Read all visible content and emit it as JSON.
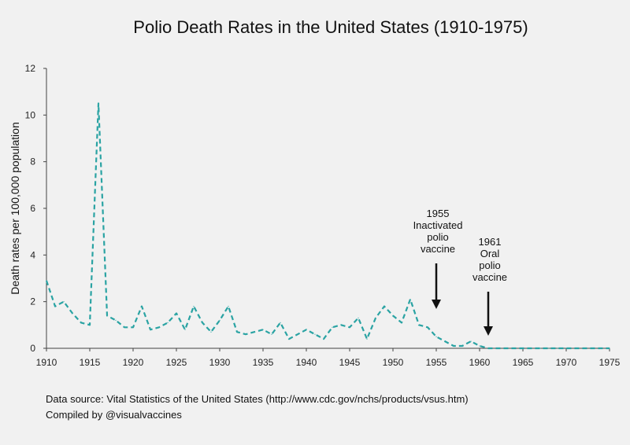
{
  "chart_data": {
    "type": "line",
    "title": "Polio Death Rates in the United States (1910-1975)",
    "xlabel": "",
    "ylabel": "Death rates per 100,000 population",
    "xlim": [
      1910,
      1975
    ],
    "ylim": [
      0,
      12
    ],
    "xticks": [
      1910,
      1915,
      1920,
      1925,
      1930,
      1935,
      1940,
      1945,
      1950,
      1955,
      1960,
      1965,
      1970,
      1975
    ],
    "yticks": [
      0,
      2,
      4,
      6,
      8,
      10,
      12
    ],
    "grid": false,
    "line_color": "#2aa3a3",
    "line_style": "dashed",
    "series": [
      {
        "x": [
          1910,
          1911,
          1912,
          1913,
          1914,
          1915,
          1916,
          1917,
          1918,
          1919,
          1920,
          1921,
          1922,
          1923,
          1924,
          1925,
          1926,
          1927,
          1928,
          1929,
          1930,
          1931,
          1932,
          1933,
          1934,
          1935,
          1936,
          1937,
          1938,
          1939,
          1940,
          1941,
          1942,
          1943,
          1944,
          1945,
          1946,
          1947,
          1948,
          1949,
          1950,
          1951,
          1952,
          1953,
          1954,
          1955,
          1956,
          1957,
          1958,
          1959,
          1960,
          1961,
          1962,
          1963,
          1964,
          1965,
          1966,
          1967,
          1968,
          1969,
          1970,
          1971,
          1972,
          1973,
          1974,
          1975
        ],
        "values": [
          2.9,
          1.8,
          2.0,
          1.5,
          1.1,
          1.0,
          10.5,
          1.4,
          1.2,
          0.9,
          0.9,
          1.8,
          0.8,
          0.9,
          1.1,
          1.5,
          0.8,
          1.8,
          1.1,
          0.7,
          1.2,
          1.8,
          0.7,
          0.6,
          0.7,
          0.8,
          0.6,
          1.1,
          0.4,
          0.6,
          0.8,
          0.6,
          0.4,
          0.9,
          1.0,
          0.9,
          1.3,
          0.4,
          1.3,
          1.8,
          1.4,
          1.1,
          2.1,
          1.0,
          0.9,
          0.5,
          0.3,
          0.1,
          0.1,
          0.3,
          0.1,
          0.0,
          0.0,
          0.0,
          0.0,
          0.0,
          0.0,
          0.0,
          0.0,
          0.0,
          0.0,
          0.0,
          0.0,
          0.0,
          0.0,
          0.0
        ]
      }
    ],
    "annotations": [
      {
        "x": 1955,
        "lines": [
          "1955",
          "Inactivated",
          "polio",
          "vaccine"
        ]
      },
      {
        "x": 1961,
        "lines": [
          "1961",
          "Oral",
          "polio",
          "vaccine"
        ]
      }
    ]
  },
  "footer": {
    "source": "Data source: Vital Statistics of the United States (http://www.cdc.gov/nchs/products/vsus.htm)",
    "credit": "Compiled by @visualvaccines"
  }
}
